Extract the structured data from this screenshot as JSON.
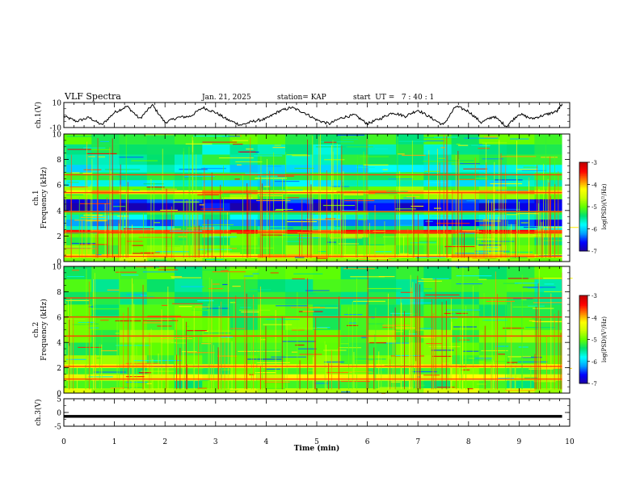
{
  "header": {
    "title": "VLF Spectra",
    "date": "Jan. 21, 2025",
    "station": "station= KAP",
    "start": "start  UT =   7 : 40 : 1"
  },
  "colors": {
    "frame": "#000000",
    "trace": "#000000",
    "colormap": [
      "#1e00a0",
      "#0000ff",
      "#00a0ff",
      "#00ffff",
      "#00e070",
      "#60ff00",
      "#c8ff00",
      "#ffff00",
      "#ff8000",
      "#ff0000",
      "#c00000"
    ]
  },
  "chart_data": [
    {
      "type": "line",
      "name": "ch1-waveform",
      "ylabel": "ch.1(V)",
      "ylim": [
        -10,
        10
      ],
      "yticks": [
        "10",
        "-10"
      ],
      "xlim": [
        0,
        10
      ],
      "x": [
        0,
        0.25,
        0.5,
        0.75,
        1.0,
        1.25,
        1.5,
        1.75,
        2.0,
        2.25,
        2.5,
        2.75,
        3.0,
        3.25,
        3.5,
        3.75,
        4.0,
        4.25,
        4.5,
        4.75,
        5.0,
        5.25,
        5.5,
        5.75,
        6.0,
        6.25,
        6.5,
        6.75,
        7.0,
        7.25,
        7.5,
        7.75,
        8.0,
        8.25,
        8.5,
        8.75,
        9.0,
        9.25,
        9.5,
        9.75,
        9.85
      ],
      "y": [
        -1,
        -5,
        -2,
        -8,
        2,
        7,
        -3,
        8,
        -6,
        -2,
        -1,
        6,
        2,
        -4,
        -8,
        -5,
        -3,
        3,
        6,
        2,
        -4,
        -7,
        -2,
        0,
        -7,
        -3,
        2,
        -1,
        4,
        -2,
        -8,
        7,
        3,
        -6,
        -1,
        -9,
        1,
        -3,
        0,
        3,
        9
      ]
    },
    {
      "type": "heatmap",
      "name": "ch1-spectrogram",
      "ylabel": "ch.1",
      "ylabel2": "Frequency (kHz)",
      "ylim": [
        0,
        10
      ],
      "yticks": [
        "0",
        "2",
        "4",
        "6",
        "8",
        "10"
      ],
      "xlim": [
        0,
        10
      ],
      "data_end_min": 9.85,
      "bands": [
        {
          "f": [
            0.0,
            0.3
          ],
          "level": -4.8
        },
        {
          "f": [
            0.3,
            0.6
          ],
          "level": -4.2
        },
        {
          "f": [
            0.6,
            1.3
          ],
          "level": -5.0
        },
        {
          "f": [
            1.3,
            1.9
          ],
          "level": -5.2
        },
        {
          "f": [
            1.9,
            2.2
          ],
          "level": -4.9
        },
        {
          "f": [
            2.2,
            2.5
          ],
          "level": -3.6
        },
        {
          "f": [
            2.5,
            2.8
          ],
          "level": -5.5
        },
        {
          "f": [
            2.8,
            3.3
          ],
          "level": -6.4
        },
        {
          "f": [
            3.3,
            3.7
          ],
          "level": -5.6
        },
        {
          "f": [
            3.7,
            4.0
          ],
          "level": -5.2
        },
        {
          "f": [
            4.0,
            4.6
          ],
          "level": -6.7
        },
        {
          "f": [
            4.6,
            4.9
          ],
          "level": -6.5
        },
        {
          "f": [
            4.9,
            5.3
          ],
          "level": -4.9
        },
        {
          "f": [
            5.3,
            5.6
          ],
          "level": -4.0
        },
        {
          "f": [
            5.6,
            5.9
          ],
          "level": -5.0
        },
        {
          "f": [
            5.9,
            6.4
          ],
          "level": -5.8
        },
        {
          "f": [
            6.4,
            7.0
          ],
          "level": -5.3
        },
        {
          "f": [
            7.0,
            7.6
          ],
          "level": -5.8
        },
        {
          "f": [
            7.6,
            8.4
          ],
          "level": -5.4
        },
        {
          "f": [
            8.4,
            9.2
          ],
          "level": -5.5
        },
        {
          "f": [
            9.2,
            10.0
          ],
          "level": -5.2
        }
      ],
      "lines_kHz": [
        0.4,
        2.3,
        3.9,
        5.4,
        6.8
      ]
    },
    {
      "type": "heatmap",
      "name": "ch2-spectrogram",
      "ylabel": "ch.2",
      "ylabel2": "Frequency (kHz)",
      "ylim": [
        0,
        10
      ],
      "yticks": [
        "0",
        "2",
        "4",
        "6",
        "8",
        "10"
      ],
      "xlim": [
        0,
        10
      ],
      "data_end_min": 9.85,
      "bands": [
        {
          "f": [
            0.0,
            0.4
          ],
          "level": -4.6
        },
        {
          "f": [
            0.4,
            1.0
          ],
          "level": -5.2
        },
        {
          "f": [
            1.0,
            1.5
          ],
          "level": -4.4
        },
        {
          "f": [
            1.5,
            2.0
          ],
          "level": -5.1
        },
        {
          "f": [
            2.0,
            2.3
          ],
          "level": -4.3
        },
        {
          "f": [
            2.3,
            3.0
          ],
          "level": -5.0
        },
        {
          "f": [
            3.0,
            4.0
          ],
          "level": -5.1
        },
        {
          "f": [
            4.0,
            5.0
          ],
          "level": -5.0
        },
        {
          "f": [
            5.0,
            6.0
          ],
          "level": -5.1
        },
        {
          "f": [
            6.0,
            7.0
          ],
          "level": -5.2
        },
        {
          "f": [
            7.0,
            8.0
          ],
          "level": -5.3
        },
        {
          "f": [
            8.0,
            9.0
          ],
          "level": -5.3
        },
        {
          "f": [
            9.0,
            10.0
          ],
          "level": -5.2
        }
      ],
      "lines_kHz": [
        1.1,
        2.1,
        4.5,
        6.0,
        7.5
      ]
    },
    {
      "type": "line",
      "name": "ch3-waveform",
      "ylabel": "ch.3(V)",
      "ylim": [
        -5,
        5
      ],
      "yticks": [
        "5",
        "0",
        "-5"
      ],
      "xlim": [
        0,
        10
      ],
      "x": [
        0,
        9.85
      ],
      "y": [
        -1.4,
        -1.4
      ],
      "band_halfwidth": 0.5
    }
  ],
  "colorbars": [
    {
      "name": "colorbar-ch1",
      "range": [
        -7,
        -3
      ],
      "ticks": [
        "-3",
        "-4",
        "-5",
        "-6",
        "-7"
      ],
      "label": "log(PSD)(V²/Hz)"
    },
    {
      "name": "colorbar-ch2",
      "range": [
        -7,
        -3
      ],
      "ticks": [
        "-3",
        "-4",
        "-5",
        "-6",
        "-7"
      ],
      "label": "log(PSD)(V²/Hz)"
    }
  ],
  "xaxis": {
    "label": "Time  (min)",
    "ticks": [
      "0",
      "1",
      "2",
      "3",
      "4",
      "5",
      "6",
      "7",
      "8",
      "9",
      "10"
    ]
  }
}
